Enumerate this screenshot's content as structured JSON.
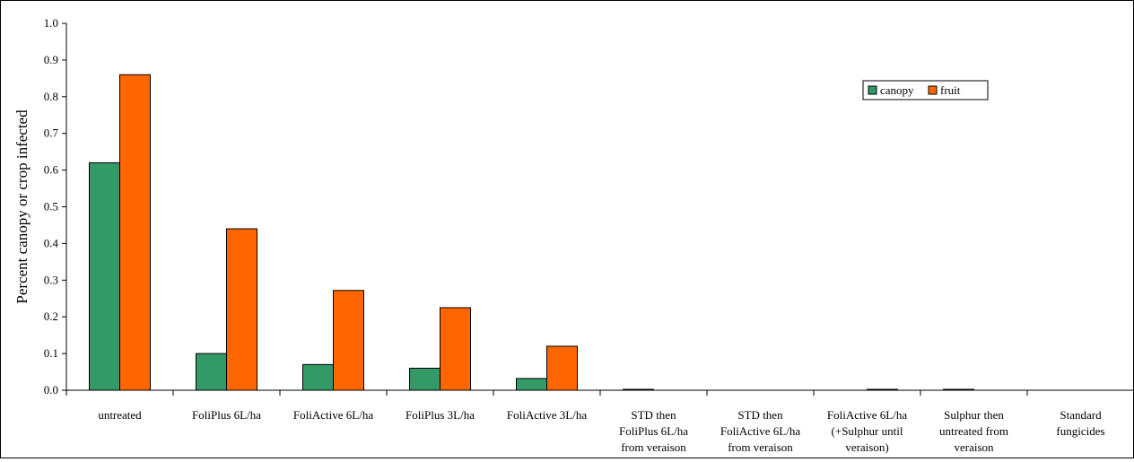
{
  "chart_data": {
    "type": "bar",
    "title": "",
    "xlabel": "",
    "ylabel": "Percent canopy or crop infected",
    "ylim": [
      0,
      1.0
    ],
    "yticks": [
      "0.0",
      "0.1",
      "0.2",
      "0.3",
      "0.4",
      "0.5",
      "0.6",
      "0.7",
      "0.8",
      "0.9",
      "1.0"
    ],
    "categories": [
      [
        "untreated"
      ],
      [
        "FoliPlus 6L/ha"
      ],
      [
        "FoliActive 6L/ha"
      ],
      [
        "FoliPlus 3L/ha"
      ],
      [
        "FoliActive 3L/ha"
      ],
      [
        "STD then",
        "FoliPlus 6L/ha",
        "from veraison"
      ],
      [
        "STD then",
        "FoliActive 6L/ha",
        "from veraison"
      ],
      [
        "FoliActive 6L/ha",
        "(+Sulphur until",
        "veraison)"
      ],
      [
        "Sulphur then",
        "untreated from",
        "veraison"
      ],
      [
        "Standard",
        "fungicides"
      ]
    ],
    "series": [
      {
        "name": "canopy",
        "color": "#339966",
        "values": [
          0.62,
          0.1,
          0.07,
          0.06,
          0.032,
          0.002,
          0.0,
          0.0,
          0.002,
          0.0
        ]
      },
      {
        "name": "fruit",
        "color": "#FF6600",
        "values": [
          0.86,
          0.44,
          0.272,
          0.225,
          0.12,
          0.0,
          0.0,
          0.002,
          0.0,
          0.0
        ]
      }
    ],
    "grid": false,
    "legend": "top-right"
  }
}
